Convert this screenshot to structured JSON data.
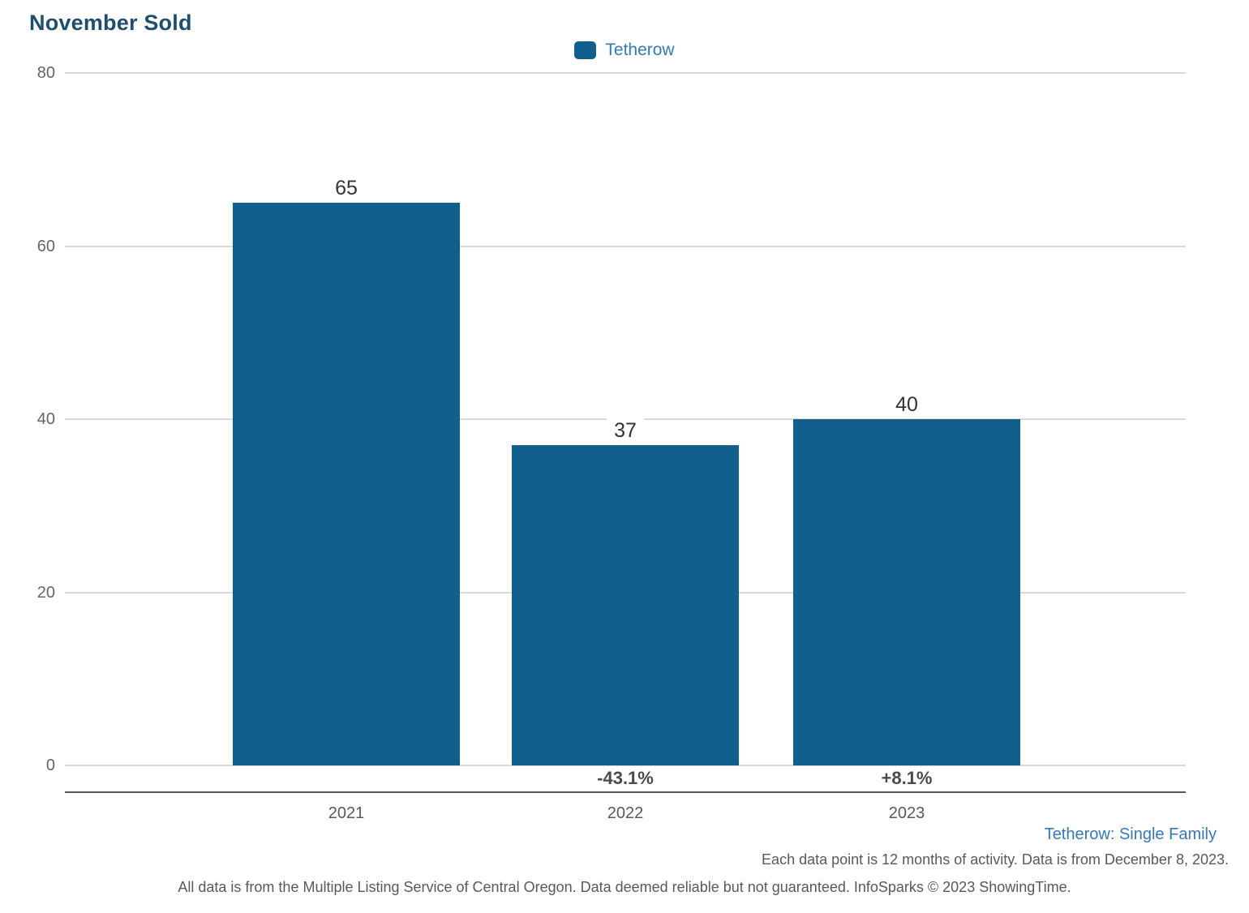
{
  "chart": {
    "title": "November Sold",
    "legend_label": "Tetherow"
  },
  "footer": {
    "series_note": "Tetherow: Single Family",
    "data_note": "Each data point is 12 months of activity. Data is from December 8, 2023.",
    "disclaimer": "All data is from the Multiple Listing Service of Central Oregon. Data deemed reliable but not guaranteed. InfoSparks © 2023 ShowingTime."
  },
  "colors": {
    "bar": "#115f8d",
    "title_text": "#1f4e6d",
    "blue_text": "#3579b5",
    "gridline": "#d9d9d9",
    "axis_line": "#555555",
    "gray_text": "#595959"
  },
  "chart_data": {
    "type": "bar",
    "title": "November Sold",
    "categories": [
      "2021",
      "2022",
      "2023"
    ],
    "series": [
      {
        "name": "Tetherow",
        "values": [
          65,
          37,
          40
        ]
      }
    ],
    "value_labels": [
      "65",
      "37",
      "40"
    ],
    "pct_change_labels": [
      null,
      "-43.1%",
      "+8.1%"
    ],
    "yticks": [
      0,
      20,
      40,
      60,
      80
    ],
    "ylim": [
      0,
      80
    ],
    "xlabel": "",
    "ylabel": "",
    "grid": true,
    "legend_position": "top-center",
    "legend_entries": [
      "Tetherow"
    ]
  }
}
